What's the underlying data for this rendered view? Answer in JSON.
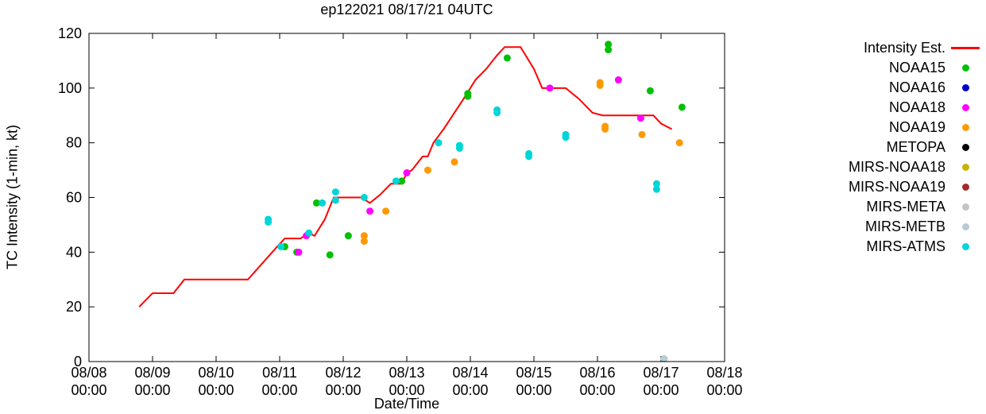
{
  "chart_data": {
    "type": "line+scatter",
    "title": "ep122021 08/17/21 04UTC",
    "xlabel": "Date/Time",
    "ylabel": "TC Intensity (1-min, kt)",
    "ylim": [
      0,
      120
    ],
    "xlim": [
      0,
      10
    ],
    "grid": false,
    "legend_position": "right-outside",
    "x_unit": "days since 08/08 00:00",
    "y_ticks": [
      0,
      20,
      40,
      60,
      80,
      100,
      120
    ],
    "x_ticks": [
      {
        "day": 0,
        "date": "08/08",
        "time": "00:00"
      },
      {
        "day": 1,
        "date": "08/09",
        "time": "00:00"
      },
      {
        "day": 2,
        "date": "08/10",
        "time": "00:00"
      },
      {
        "day": 3,
        "date": "08/11",
        "time": "00:00"
      },
      {
        "day": 4,
        "date": "08/12",
        "time": "00:00"
      },
      {
        "day": 5,
        "date": "08/13",
        "time": "00:00"
      },
      {
        "day": 6,
        "date": "08/14",
        "time": "00:00"
      },
      {
        "day": 7,
        "date": "08/15",
        "time": "00:00"
      },
      {
        "day": 8,
        "date": "08/16",
        "time": "00:00"
      },
      {
        "day": 9,
        "date": "08/17",
        "time": "00:00"
      },
      {
        "day": 10,
        "date": "08/18",
        "time": "00:00"
      }
    ],
    "series": [
      {
        "name": "Intensity Est.",
        "style": "line",
        "color": "#ff0000",
        "points": [
          [
            0.79,
            20
          ],
          [
            1.0,
            25
          ],
          [
            1.33,
            25
          ],
          [
            1.5,
            30
          ],
          [
            2.5,
            30
          ],
          [
            2.96,
            42
          ],
          [
            3.08,
            45
          ],
          [
            3.33,
            45
          ],
          [
            3.45,
            47
          ],
          [
            3.55,
            46
          ],
          [
            3.71,
            52
          ],
          [
            3.85,
            60
          ],
          [
            4.28,
            60
          ],
          [
            4.42,
            58
          ],
          [
            4.58,
            61
          ],
          [
            4.75,
            65
          ],
          [
            4.92,
            65
          ],
          [
            5.0,
            69
          ],
          [
            5.08,
            70
          ],
          [
            5.25,
            75
          ],
          [
            5.33,
            75
          ],
          [
            5.42,
            80
          ],
          [
            5.58,
            85
          ],
          [
            5.75,
            91
          ],
          [
            5.92,
            97
          ],
          [
            6.08,
            103
          ],
          [
            6.25,
            107
          ],
          [
            6.42,
            112
          ],
          [
            6.54,
            115
          ],
          [
            6.79,
            115
          ],
          [
            7.0,
            107
          ],
          [
            7.13,
            100
          ],
          [
            7.5,
            100
          ],
          [
            7.71,
            96
          ],
          [
            7.92,
            91
          ],
          [
            8.08,
            90
          ],
          [
            8.5,
            90
          ],
          [
            8.88,
            90
          ],
          [
            9.0,
            87
          ],
          [
            9.17,
            85
          ]
        ]
      },
      {
        "name": "NOAA15",
        "style": "dot",
        "color": "#00c000",
        "points": [
          [
            3.08,
            42
          ],
          [
            3.27,
            40
          ],
          [
            3.58,
            58
          ],
          [
            3.79,
            39
          ],
          [
            4.08,
            46
          ],
          [
            4.92,
            66
          ],
          [
            5.96,
            98
          ],
          [
            5.96,
            97
          ],
          [
            6.58,
            111
          ],
          [
            8.17,
            116
          ],
          [
            8.17,
            114
          ],
          [
            8.83,
            99
          ],
          [
            9.33,
            93
          ]
        ]
      },
      {
        "name": "NOAA16",
        "style": "dot",
        "color": "#0000cc",
        "points": []
      },
      {
        "name": "NOAA18",
        "style": "dot",
        "color": "#ff00ff",
        "points": [
          [
            3.3,
            40
          ],
          [
            3.42,
            46
          ],
          [
            4.42,
            55
          ],
          [
            5.0,
            69
          ],
          [
            7.25,
            100
          ],
          [
            8.33,
            103
          ],
          [
            8.68,
            89
          ]
        ]
      },
      {
        "name": "NOAA19",
        "style": "dot",
        "color": "#ff9900",
        "points": [
          [
            4.33,
            46
          ],
          [
            4.33,
            44
          ],
          [
            4.67,
            55
          ],
          [
            5.33,
            70
          ],
          [
            5.75,
            73
          ],
          [
            8.04,
            102
          ],
          [
            8.04,
            101
          ],
          [
            8.12,
            86
          ],
          [
            8.12,
            85
          ],
          [
            8.7,
            83
          ],
          [
            9.29,
            80
          ]
        ]
      },
      {
        "name": "METOPA",
        "style": "dot",
        "color": "#000000",
        "points": []
      },
      {
        "name": "MIRS-NOAA18",
        "style": "dot",
        "color": "#c8b400",
        "points": []
      },
      {
        "name": "MIRS-NOAA19",
        "style": "dot",
        "color": "#a52a2a",
        "points": []
      },
      {
        "name": "MIRS-META",
        "style": "dot",
        "color": "#c4c4c4",
        "points": []
      },
      {
        "name": "MIRS-METB",
        "style": "dot",
        "color": "#b7ccd6",
        "points": [
          [
            9.05,
            1
          ]
        ]
      },
      {
        "name": "MIRS-ATMS",
        "style": "dot",
        "color": "#00d5d8",
        "points": [
          [
            2.82,
            52
          ],
          [
            2.82,
            51
          ],
          [
            3.02,
            42
          ],
          [
            3.46,
            47
          ],
          [
            3.67,
            58
          ],
          [
            3.88,
            62
          ],
          [
            3.88,
            59
          ],
          [
            4.33,
            60
          ],
          [
            4.83,
            66
          ],
          [
            5.5,
            80
          ],
          [
            5.83,
            79
          ],
          [
            5.83,
            78
          ],
          [
            6.42,
            92
          ],
          [
            6.42,
            91
          ],
          [
            6.92,
            76
          ],
          [
            6.92,
            75
          ],
          [
            7.5,
            83
          ],
          [
            7.5,
            82
          ],
          [
            8.93,
            65
          ],
          [
            8.93,
            63
          ]
        ]
      }
    ]
  }
}
